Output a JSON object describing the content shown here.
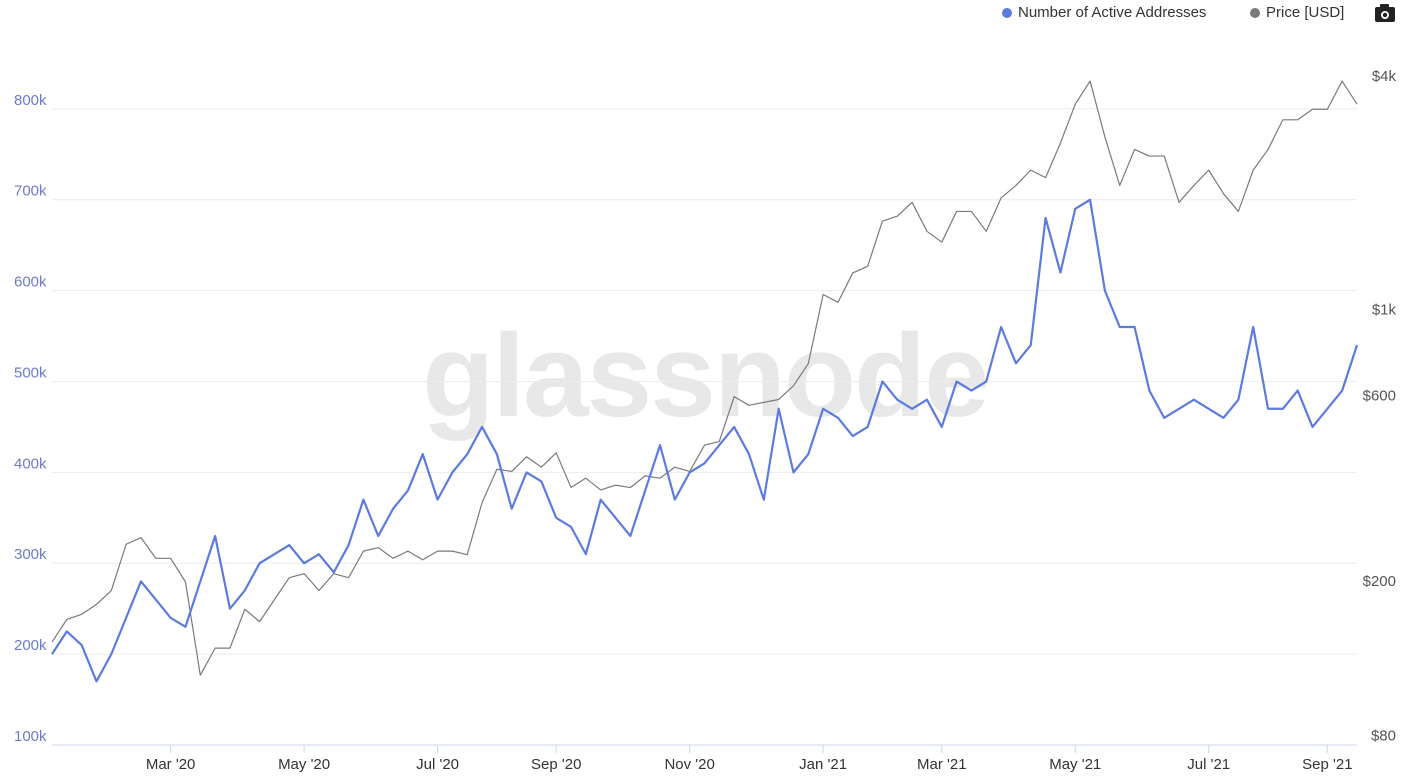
{
  "chart_data": {
    "type": "line",
    "watermark": "glassnode",
    "legend": "top-right",
    "grid": true,
    "y2log": true,
    "categories": [
      null,
      null,
      null,
      null,
      null,
      null,
      null,
      null,
      "Mar '20",
      null,
      null,
      null,
      null,
      null,
      null,
      null,
      null,
      "May '20",
      null,
      null,
      null,
      null,
      null,
      null,
      null,
      null,
      "Jul '20",
      null,
      null,
      null,
      null,
      null,
      null,
      null,
      "Sep '20",
      null,
      null,
      null,
      null,
      null,
      null,
      null,
      null,
      "Nov '20",
      null,
      null,
      null,
      null,
      null,
      null,
      null,
      null,
      "Jan '21",
      null,
      null,
      null,
      null,
      null,
      null,
      null,
      "Mar '21",
      null,
      null,
      null,
      null,
      null,
      null,
      null,
      null,
      "May '21",
      null,
      null,
      null,
      null,
      null,
      null,
      null,
      null,
      "Jul '21",
      null,
      null,
      null,
      null,
      null,
      null,
      null,
      "Sep '21",
      null,
      null
    ],
    "series": [
      {
        "name": "Number of Active Addresses",
        "color": "#5b7be0",
        "axis": "y",
        "values": [
          200000,
          225000,
          210000,
          170000,
          200000,
          240000,
          280000,
          260000,
          240000,
          230000,
          280000,
          330000,
          250000,
          270000,
          300000,
          310000,
          320000,
          300000,
          310000,
          290000,
          320000,
          370000,
          330000,
          360000,
          380000,
          420000,
          370000,
          400000,
          420000,
          450000,
          420000,
          360000,
          400000,
          390000,
          350000,
          340000,
          310000,
          370000,
          350000,
          330000,
          380000,
          430000,
          370000,
          400000,
          410000,
          430000,
          450000,
          420000,
          370000,
          470000,
          400000,
          420000,
          470000,
          460000,
          440000,
          450000,
          500000,
          480000,
          470000,
          480000,
          450000,
          500000,
          490000,
          500000,
          560000,
          520000,
          540000,
          680000,
          620000,
          690000,
          700000,
          600000,
          560000,
          560000,
          490000,
          460000,
          470000,
          480000,
          470000,
          460000,
          480000,
          560000,
          470000,
          470000,
          490000,
          450000,
          470000,
          490000,
          540000
        ]
      },
      {
        "name": "Price [USD]",
        "color": "#7a7a7a",
        "axis": "y2",
        "values": [
          140,
          160,
          165,
          175,
          190,
          250,
          260,
          230,
          230,
          200,
          115,
          135,
          135,
          170,
          158,
          180,
          205,
          210,
          190,
          210,
          205,
          240,
          245,
          230,
          240,
          228,
          240,
          240,
          235,
          320,
          390,
          385,
          420,
          395,
          430,
          350,
          370,
          345,
          355,
          350,
          375,
          370,
          395,
          385,
          450,
          460,
          600,
          570,
          580,
          590,
          640,
          730,
          1100,
          1050,
          1250,
          1300,
          1700,
          1750,
          1900,
          1600,
          1500,
          1800,
          1800,
          1600,
          1950,
          2100,
          2300,
          2200,
          2700,
          3400,
          3900,
          2800,
          2100,
          2600,
          2500,
          2500,
          1900,
          2100,
          2300,
          2000,
          1800,
          2300,
          2600,
          3100,
          3100,
          3300,
          3300,
          3900,
          3400
        ]
      }
    ],
    "ylim": [
      100000,
      900000
    ],
    "yticks": [
      {
        "value": 100000,
        "label": "100k"
      },
      {
        "value": 200000,
        "label": "200k"
      },
      {
        "value": 300000,
        "label": "300k"
      },
      {
        "value": 400000,
        "label": "400k"
      },
      {
        "value": 500000,
        "label": "500k"
      },
      {
        "value": 600000,
        "label": "600k"
      },
      {
        "value": 700000,
        "label": "700k"
      },
      {
        "value": 800000,
        "label": "800k"
      }
    ],
    "y2lim": [
      76,
      5670
    ],
    "y2ticks": [
      {
        "value": 80,
        "label": "$80"
      },
      {
        "value": 200,
        "label": "$200"
      },
      {
        "value": 600,
        "label": "$600"
      },
      {
        "value": 1000,
        "label": "$1k"
      },
      {
        "value": 4000,
        "label": "$4k"
      }
    ]
  }
}
